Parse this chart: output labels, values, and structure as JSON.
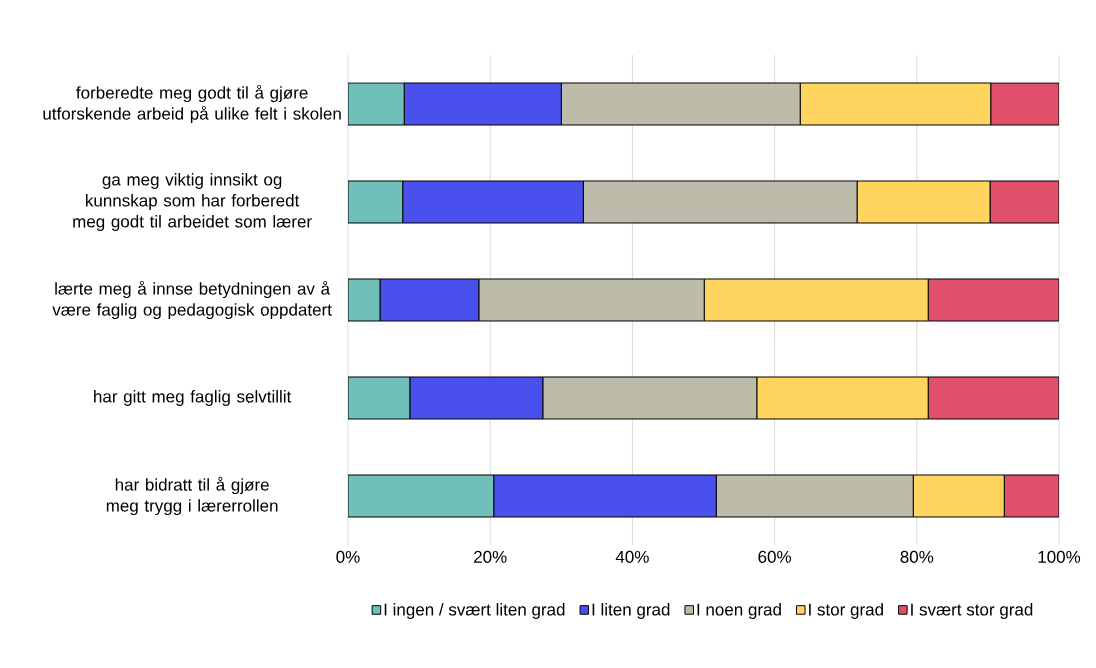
{
  "chart_data": {
    "type": "bar",
    "orientation": "horizontal",
    "stacked": true,
    "categories": [
      "forberedte meg godt til å gjøre utforskende arbeid på ulike felt i skolen",
      "ga meg viktig innsikt og kunnskap som har forberedt meg godt til arbeidet som lærer",
      "lærte meg å innse betydningen av å være faglig og pedagogisk oppdatert",
      "har gitt meg faglig selvtillit",
      "har bidratt til å gjøre meg trygg i lærerrollen"
    ],
    "series": [
      {
        "name": "I ingen / svært liten grad",
        "color": "#70bfb9",
        "values": [
          7.9,
          7.7,
          4.5,
          8.7,
          20.5
        ]
      },
      {
        "name": "I liten grad",
        "color": "#4a50ec",
        "values": [
          22.1,
          25.4,
          13.9,
          18.7,
          31.3
        ]
      },
      {
        "name": "I noen grad",
        "color": "#bdbcaa",
        "values": [
          33.6,
          38.5,
          31.7,
          30.1,
          27.7
        ]
      },
      {
        "name": "I stor grad",
        "color": "#ffd55f",
        "values": [
          26.8,
          18.7,
          31.5,
          24.1,
          12.8
        ]
      },
      {
        "name": "I svært stor grad",
        "color": "#e0506a",
        "values": [
          9.6,
          9.7,
          18.4,
          18.4,
          7.7
        ]
      }
    ],
    "xlim": [
      0,
      100
    ],
    "xticks": [
      {
        "value": 0,
        "label": "0%"
      },
      {
        "value": 20,
        "label": "20%"
      },
      {
        "value": 40,
        "label": "40%"
      },
      {
        "value": 60,
        "label": "60%"
      },
      {
        "value": 80,
        "label": "80%"
      },
      {
        "value": 100,
        "label": "100%"
      }
    ],
    "grid": "x",
    "legend": "bottom"
  }
}
